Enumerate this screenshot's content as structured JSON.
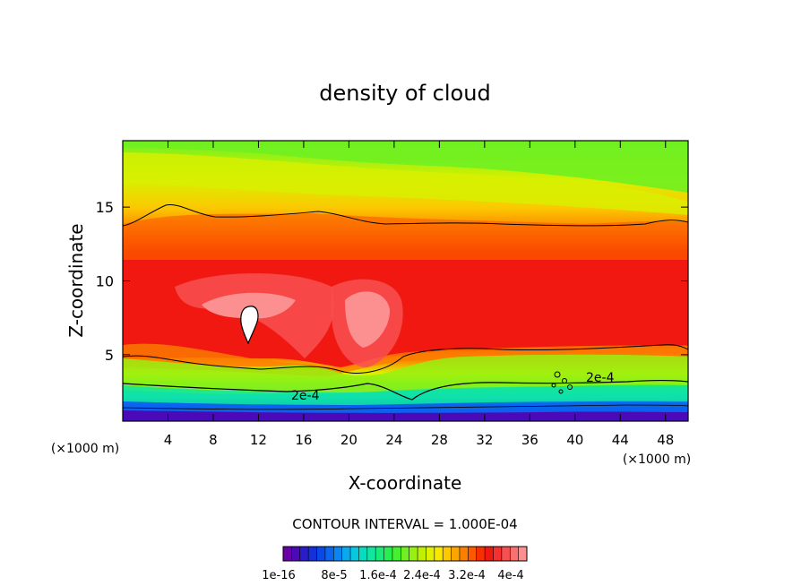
{
  "chart_data": {
    "type": "heatmap",
    "title": "density of cloud",
    "xlabel": "X-coordinate",
    "ylabel": "Z-coordinate",
    "x_unit_label": "(×1000 m)",
    "x_unit_label_right": "(×1000 m)",
    "xlim": [
      0,
      50
    ],
    "ylim": [
      0.5,
      19.5
    ],
    "x_ticks": [
      4,
      8,
      12,
      16,
      20,
      24,
      28,
      32,
      36,
      40,
      44,
      48
    ],
    "y_ticks": [
      5,
      10,
      15
    ],
    "contour_interval_text": "CONTOUR INTERVAL = 1.000E-04",
    "contour_labels": [
      "2e-4",
      "2e-4"
    ],
    "colorbar": {
      "colors": [
        "#6a00a8",
        "#4b0ab8",
        "#2a1dc8",
        "#1430d8",
        "#0a48e8",
        "#0a66f0",
        "#0a86f0",
        "#0aa8ec",
        "#08c8e0",
        "#08dcc0",
        "#10e6a0",
        "#18ec78",
        "#28ee50",
        "#46f030",
        "#70f020",
        "#98f010",
        "#bef000",
        "#e0f000",
        "#f8e800",
        "#fcc800",
        "#fca400",
        "#fc8000",
        "#fc5a00",
        "#f83000",
        "#f01810",
        "#f43030",
        "#f85050",
        "#fa7070",
        "#fc9090"
      ],
      "tick_labels": [
        "1e-16",
        "8e-5",
        "1.6e-4",
        "2.4e-4",
        "3.2e-4",
        "4e-4"
      ]
    }
  }
}
